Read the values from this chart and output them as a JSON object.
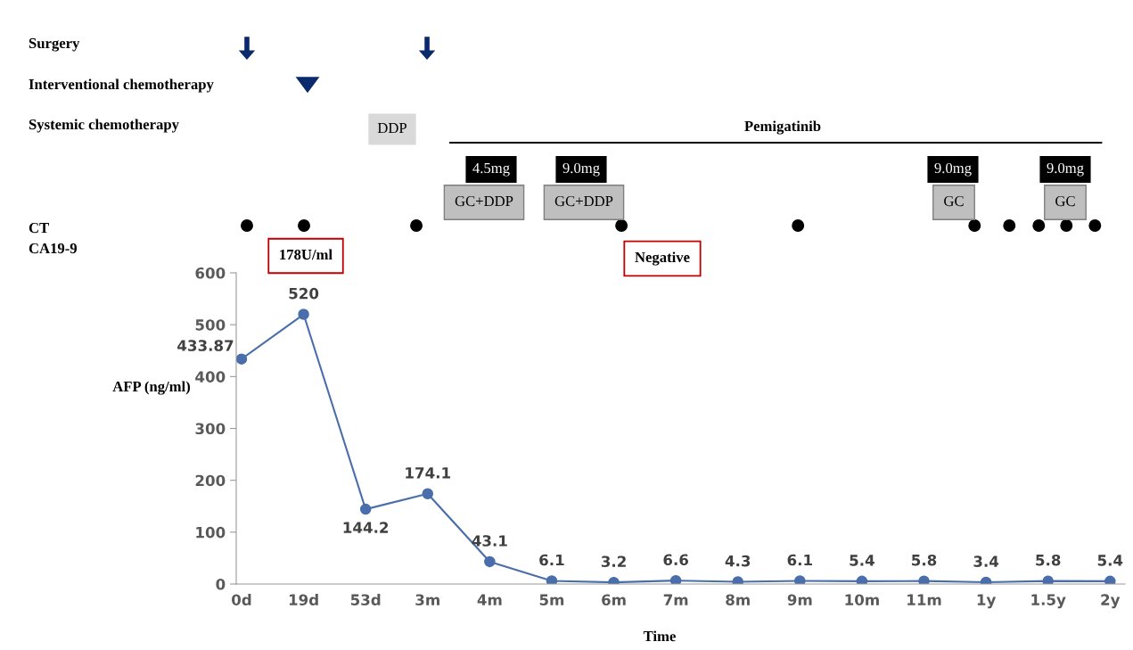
{
  "chart_data": {
    "type": "line",
    "xlabel": "Time",
    "ylabel": "AFP (ng/ml)",
    "categories": [
      "0d",
      "19d",
      "53d",
      "3m",
      "4m",
      "5m",
      "6m",
      "7m",
      "8m",
      "9m",
      "10m",
      "11m",
      "1y",
      "1.5y",
      "2y"
    ],
    "series": [
      {
        "color": "#4a6eab",
        "values": [
          433.87,
          520,
          144.2,
          174.1,
          43.1,
          6.1,
          3.2,
          6.6,
          4.3,
          6.1,
          5.4,
          5.8,
          3.4,
          5.8,
          5.4
        ]
      }
    ],
    "ylim": [
      0,
      600
    ],
    "yticks": [
      0,
      100,
      200,
      300,
      400,
      500,
      600
    ],
    "data_labels": true,
    "marker": "circle",
    "line_style": "solid",
    "grid": false,
    "legend": false,
    "annotations": [
      "Surgery",
      "Interventional chemotherapy",
      "Systemic chemotherapy",
      "CT",
      "CA19-9",
      "DDP",
      "Pemigatinib",
      "4.5mg",
      "GC+DDP",
      "9.0mg",
      "GC+DDP",
      "9.0mg",
      "GC",
      "9.0mg",
      "GC",
      "178U/ml",
      "Negative"
    ]
  }
}
